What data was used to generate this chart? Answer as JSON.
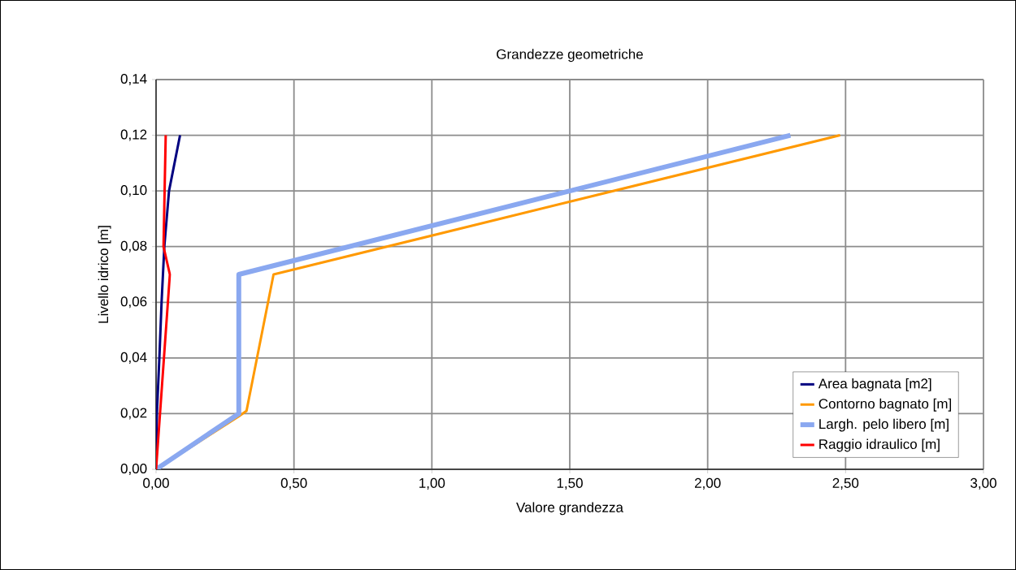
{
  "chart_data": {
    "type": "line",
    "title": "Grandezze geometriche",
    "xlabel": "Valore grandezza",
    "ylabel": "Livello idrico [m]",
    "xlim": [
      0,
      3
    ],
    "ylim": [
      0,
      0.14
    ],
    "xticks": [
      {
        "value": 0,
        "label": "0,00"
      },
      {
        "value": 0.5,
        "label": "0,50"
      },
      {
        "value": 1,
        "label": "1,00"
      },
      {
        "value": 1.5,
        "label": "1,50"
      },
      {
        "value": 2,
        "label": "2,00"
      },
      {
        "value": 2.5,
        "label": "2,50"
      },
      {
        "value": 3,
        "label": "3,00"
      }
    ],
    "yticks": [
      {
        "value": 0,
        "label": "0,00"
      },
      {
        "value": 0.02,
        "label": "0,02"
      },
      {
        "value": 0.04,
        "label": "0,04"
      },
      {
        "value": 0.06,
        "label": "0,06"
      },
      {
        "value": 0.08,
        "label": "0,08"
      },
      {
        "value": 0.1,
        "label": "0,10"
      },
      {
        "value": 0.12,
        "label": "0,12"
      },
      {
        "value": 0.14,
        "label": "0,14"
      }
    ],
    "grid": true,
    "legend": "bottom right",
    "marker": "none",
    "line_style": "solid",
    "series": [
      {
        "name": "Area bagnata [m2]",
        "color": "#000080",
        "x": [
          0,
          0.003,
          0.012,
          0.02,
          0.03,
          0.047,
          0.087
        ],
        "values": [
          0,
          0.02,
          0.04,
          0.06,
          0.08,
          0.1,
          0.12
        ]
      },
      {
        "name": "Contorno bagnato [m]",
        "color": "#ff9900",
        "x": [
          0,
          0.3,
          0.328,
          0.426,
          2.48
        ],
        "values": [
          0,
          0.019,
          0.021,
          0.07,
          0.12
        ]
      },
      {
        "name": "Largh. pelo libero [m]",
        "color": "#8aa8f0",
        "x": [
          0,
          0.3,
          0.3,
          2.3
        ],
        "values": [
          0,
          0.02,
          0.07,
          0.12
        ]
      },
      {
        "name": "Raggio idraulico [m]",
        "color": "#ff0000",
        "x": [
          0,
          0.05,
          0.027,
          0.035
        ],
        "values": [
          0,
          0.07,
          0.08,
          0.12
        ]
      }
    ]
  }
}
